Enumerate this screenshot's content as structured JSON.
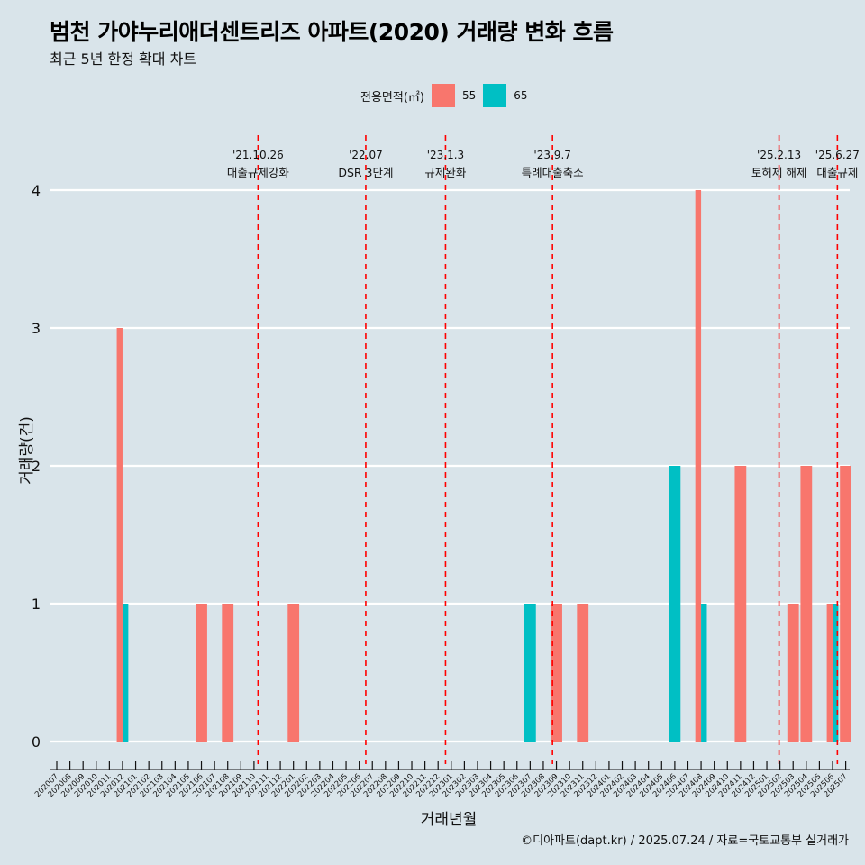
{
  "title": "범천 가야누리애더센트리즈 아파트(2020) 거래량 변화 흐름",
  "subtitle": "최근 5년 한정 확대 차트",
  "caption": "©디아파트(dapt.kr) / 2025.07.24 / 자료=국토교통부 실거래가",
  "colors": {
    "55": "#f8766d",
    "65": "#00bfc4",
    "event": "#ff0000",
    "background": "#d9e4ea",
    "grid": "#ffffff"
  },
  "legend": {
    "title": "전용면적(㎡)",
    "items": [
      {
        "label": "55",
        "color": "#f8766d"
      },
      {
        "label": "65",
        "color": "#00bfc4"
      }
    ]
  },
  "chart_data": {
    "type": "bar",
    "title": "범천 가야누리애더센트리즈 아파트(2020) 거래량 변화 흐름",
    "subtitle": "최근 5년 한정 확대 차트",
    "xlabel": "거래년월",
    "ylabel": "거래량(건)",
    "ylim": [
      0,
      4
    ],
    "yticks": [
      0,
      1,
      2,
      3,
      4
    ],
    "grid": true,
    "legend_position": "top",
    "categories": [
      "202007",
      "202008",
      "202009",
      "202010",
      "202011",
      "202012",
      "202101",
      "202102",
      "202103",
      "202104",
      "202105",
      "202106",
      "202107",
      "202108",
      "202109",
      "202110",
      "202111",
      "202112",
      "202201",
      "202202",
      "202203",
      "202204",
      "202205",
      "202206",
      "202207",
      "202208",
      "202209",
      "202210",
      "202211",
      "202212",
      "202301",
      "202302",
      "202303",
      "202304",
      "202305",
      "202306",
      "202307",
      "202308",
      "202309",
      "202310",
      "202311",
      "202312",
      "202401",
      "202402",
      "202403",
      "202404",
      "202405",
      "202406",
      "202407",
      "202408",
      "202409",
      "202410",
      "202411",
      "202412",
      "202501",
      "202502",
      "202503",
      "202504",
      "202505",
      "202506",
      "202507"
    ],
    "series": [
      {
        "name": "55",
        "color": "#f8766d",
        "points": [
          {
            "x": "202012",
            "y": 3
          },
          {
            "x": "202106",
            "y": 1
          },
          {
            "x": "202108",
            "y": 1
          },
          {
            "x": "202201",
            "y": 1
          },
          {
            "x": "202309",
            "y": 1
          },
          {
            "x": "202311",
            "y": 1
          },
          {
            "x": "202408",
            "y": 4
          },
          {
            "x": "202411",
            "y": 2
          },
          {
            "x": "202503",
            "y": 1
          },
          {
            "x": "202504",
            "y": 2
          },
          {
            "x": "202506",
            "y": 1
          },
          {
            "x": "202507",
            "y": 2
          }
        ]
      },
      {
        "name": "65",
        "color": "#00bfc4",
        "points": [
          {
            "x": "202012",
            "y": 1
          },
          {
            "x": "202307",
            "y": 1
          },
          {
            "x": "202406",
            "y": 2
          },
          {
            "x": "202408",
            "y": 1
          },
          {
            "x": "202506",
            "y": 1
          }
        ]
      }
    ],
    "events": [
      {
        "date_label": "'21.10.26",
        "text": "대출규제강화",
        "x": "2021-10-26"
      },
      {
        "date_label": "'22.07",
        "text": "DSR 3단계",
        "x": "2022-07-01"
      },
      {
        "date_label": "'23.1.3",
        "text": "규제완화",
        "x": "2023-01-03"
      },
      {
        "date_label": "'23.9.7",
        "text": "특례대출축소",
        "x": "2023-09-07"
      },
      {
        "date_label": "'25.2.13",
        "text": "토허제 해제",
        "x": "2025-02-13"
      },
      {
        "date_label": "'25.6.27",
        "text": "대출규제",
        "x": "2025-06-27"
      }
    ]
  }
}
